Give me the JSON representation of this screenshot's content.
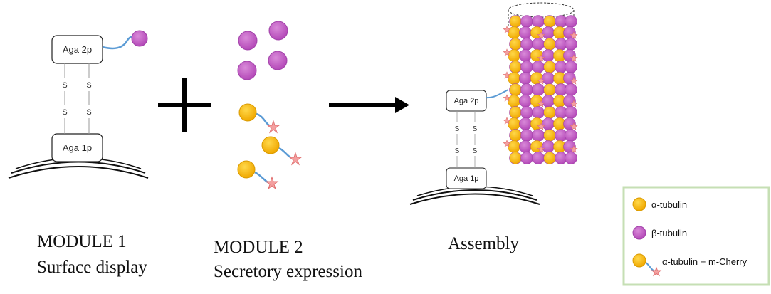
{
  "module1": {
    "top_box": "Aga 2p",
    "bottom_box": "Aga 1p",
    "bond_letters": [
      "S",
      "S",
      "S",
      "S"
    ],
    "caption_line1": "MODULE 1",
    "caption_line2": "Surface display"
  },
  "module2": {
    "caption_line1": "MODULE 2",
    "caption_line2": "Secretory expression"
  },
  "assembly": {
    "top_box": "Aga 2p",
    "bottom_box": "Aga 1p",
    "bond_letters": [
      "S",
      "S",
      "S",
      "S"
    ],
    "caption": "Assembly"
  },
  "legend": {
    "items": [
      {
        "label": "α-tubulin",
        "color": "#f5b800"
      },
      {
        "label": "β-tubulin",
        "color": "#c35ac5"
      },
      {
        "label": "α-tubulin + m-Cherry",
        "color": "#f5b800"
      }
    ],
    "border_color": "#c6dfb4"
  },
  "colors": {
    "alpha_tubulin": "#f5b800",
    "beta_tubulin": "#c35ac5",
    "linker": "#5b9bd5",
    "mcherry": "#f4a0a0"
  }
}
